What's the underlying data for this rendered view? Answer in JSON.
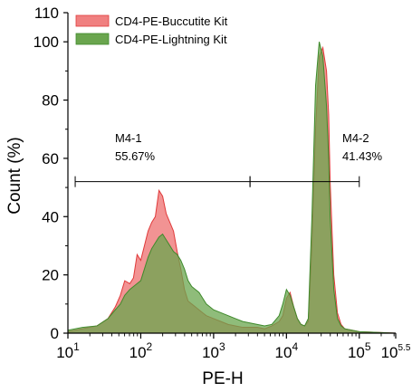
{
  "chart_data": {
    "type": "area",
    "xlabel": "PE-H",
    "ylabel": "Count (%)",
    "x_scale": "log10",
    "xlim": [
      1,
      5.5
    ],
    "ylim": [
      0,
      110
    ],
    "x_ticks": [
      {
        "value": 1,
        "base": "10",
        "exp": "1"
      },
      {
        "value": 2,
        "base": "10",
        "exp": "2"
      },
      {
        "value": 3,
        "base": "10",
        "exp": "3"
      },
      {
        "value": 4,
        "base": "10",
        "exp": "4"
      },
      {
        "value": 5,
        "base": "10",
        "exp": "5"
      },
      {
        "value": 5.5,
        "base": "10",
        "exp": "5.5"
      }
    ],
    "y_ticks": [
      "0",
      "20",
      "40",
      "60",
      "80",
      "100",
      "110"
    ],
    "legend_position": "top-left",
    "series": [
      {
        "name": "CD4-PE-Buccutite Kit",
        "color": "#f08080",
        "stroke": "#e03a3a",
        "x": [
          1.0,
          1.2,
          1.4,
          1.55,
          1.65,
          1.72,
          1.78,
          1.85,
          1.9,
          1.95,
          2.0,
          2.05,
          2.1,
          2.15,
          2.2,
          2.25,
          2.3,
          2.35,
          2.4,
          2.45,
          2.5,
          2.55,
          2.6,
          2.65,
          2.7,
          2.75,
          2.8,
          2.85,
          2.9,
          2.95,
          3.0,
          3.1,
          3.2,
          3.3,
          3.4,
          3.5,
          3.6,
          3.7,
          3.8,
          3.9,
          3.95,
          4.0,
          4.05,
          4.1,
          4.15,
          4.2,
          4.25,
          4.3,
          4.35,
          4.4,
          4.45,
          4.5,
          4.55,
          4.58,
          4.6,
          4.65,
          4.7,
          4.75,
          4.8,
          4.9,
          5.0,
          5.2,
          5.5
        ],
        "y": [
          0.5,
          1.5,
          2.5,
          5,
          9,
          13,
          18,
          17,
          19,
          27,
          25,
          30,
          35,
          38,
          40,
          49,
          47,
          41,
          38,
          35,
          28,
          22,
          15,
          11,
          10,
          9,
          8,
          7,
          6,
          5.5,
          5,
          4,
          3,
          2.5,
          2,
          2,
          2,
          1.5,
          2.5,
          4,
          6,
          12,
          14,
          9,
          5,
          3,
          2.5,
          4,
          30,
          70,
          95,
          98,
          90,
          75,
          52,
          20,
          7,
          3,
          1.5,
          1,
          0.5,
          0.3,
          0
        ]
      },
      {
        "name": "CD4-PE-Lightning Kit",
        "color": "#6aa54e",
        "stroke": "#3f8a2c",
        "x": [
          1.0,
          1.2,
          1.4,
          1.55,
          1.65,
          1.72,
          1.78,
          1.85,
          1.9,
          1.95,
          2.0,
          2.05,
          2.1,
          2.15,
          2.2,
          2.25,
          2.3,
          2.35,
          2.4,
          2.45,
          2.5,
          2.55,
          2.6,
          2.65,
          2.7,
          2.75,
          2.8,
          2.85,
          2.9,
          2.95,
          3.0,
          3.1,
          3.2,
          3.3,
          3.4,
          3.5,
          3.6,
          3.7,
          3.8,
          3.9,
          3.95,
          4.0,
          4.05,
          4.1,
          4.15,
          4.2,
          4.25,
          4.3,
          4.35,
          4.4,
          4.45,
          4.5,
          4.55,
          4.58,
          4.6,
          4.65,
          4.7,
          4.75,
          4.8,
          4.9,
          5.0,
          5.2,
          5.5
        ],
        "y": [
          1,
          2,
          2.5,
          5,
          8,
          10,
          13,
          15,
          16,
          17,
          18,
          22,
          26,
          29,
          31,
          33,
          34,
          32,
          30,
          28,
          27,
          25,
          22,
          18,
          16,
          15,
          14,
          12,
          10,
          9,
          8,
          7,
          6,
          5,
          4,
          3.5,
          3,
          2.5,
          3,
          6,
          10,
          15,
          13,
          9,
          5,
          3,
          2.5,
          5,
          40,
          85,
          100,
          95,
          78,
          60,
          40,
          15,
          5,
          2.5,
          1.5,
          1,
          0.5,
          0.3,
          0
        ]
      }
    ],
    "annotations": [
      {
        "name": "M4-1",
        "percent": "55.67%",
        "y": 52,
        "x_start": 1.1,
        "x_end": 3.5
      },
      {
        "name": "M4-2",
        "percent": "41.43%",
        "y": 52,
        "x_start": 3.5,
        "x_end": 5.0
      }
    ]
  }
}
